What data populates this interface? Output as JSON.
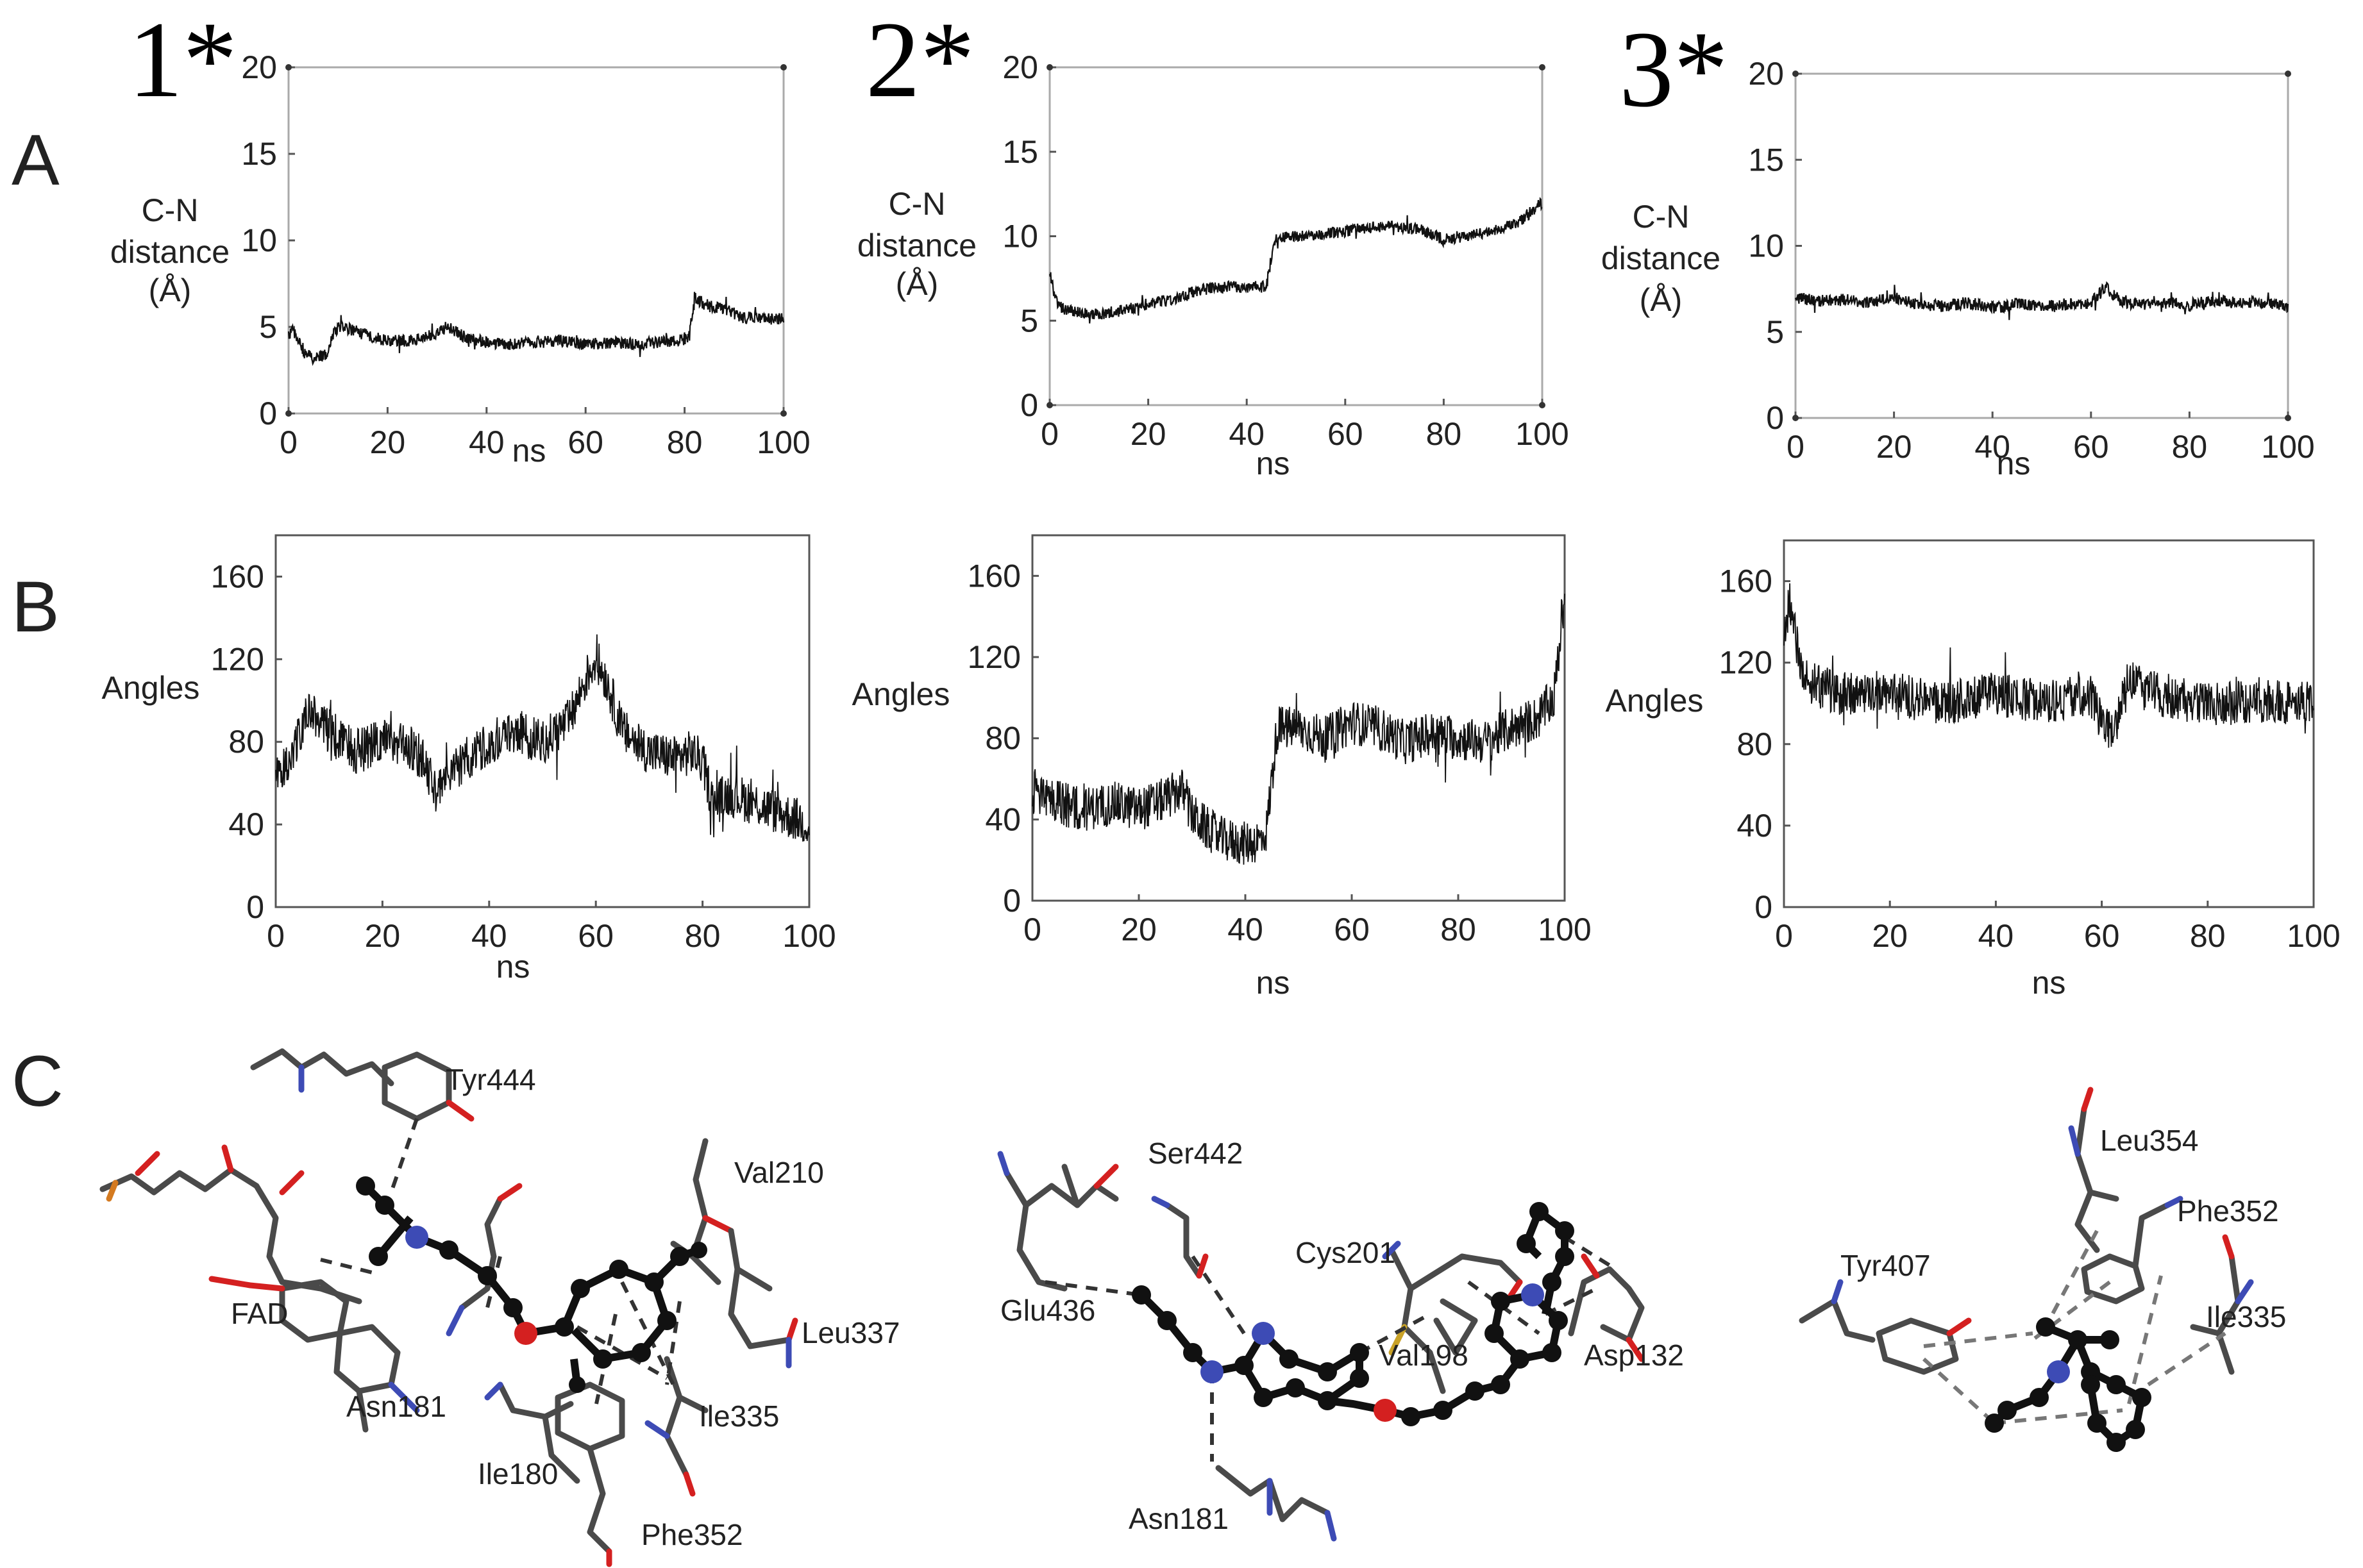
{
  "panel_letters": [
    "A",
    "B",
    "C"
  ],
  "compound_labels": [
    "1*",
    "2*",
    "3*"
  ],
  "chart_data": [
    {
      "id": "A1",
      "type": "line",
      "xlabel": "ns",
      "ylabel": [
        "C-N",
        "distance",
        "(Å)"
      ],
      "xlim": [
        0,
        100
      ],
      "ylim": [
        0,
        20
      ],
      "xticks": [
        0,
        20,
        40,
        60,
        80,
        100
      ],
      "yticks": [
        0,
        5,
        10,
        15,
        20
      ],
      "grid": false,
      "series": [
        {
          "x": [
            0,
            1,
            2,
            3,
            5,
            7,
            8,
            9,
            10,
            12,
            15,
            20,
            25,
            30,
            32,
            35,
            40,
            45,
            50,
            55,
            60,
            65,
            70,
            75,
            80,
            81,
            82,
            83,
            85,
            88,
            90,
            92,
            95,
            98,
            100
          ],
          "y": [
            4.5,
            4.8,
            4.2,
            3.5,
            3.2,
            3.3,
            3.5,
            4.6,
            5.0,
            4.9,
            4.6,
            4.2,
            4.2,
            4.6,
            5.0,
            4.5,
            4.1,
            4.0,
            4.1,
            4.2,
            4.0,
            4.1,
            4.0,
            4.1,
            4.3,
            4.5,
            6.8,
            6.5,
            6.2,
            6.0,
            5.8,
            5.5,
            5.6,
            5.4,
            5.5
          ]
        }
      ]
    },
    {
      "id": "A2",
      "type": "line",
      "xlabel": "ns",
      "ylabel": [
        "C-N",
        "distance",
        "(Å)"
      ],
      "xlim": [
        0,
        100
      ],
      "ylim": [
        0,
        20
      ],
      "xticks": [
        0,
        20,
        40,
        60,
        80,
        100
      ],
      "yticks": [
        0,
        5,
        10,
        15,
        20
      ],
      "grid": false,
      "series": [
        {
          "x": [
            0,
            1,
            2,
            5,
            10,
            15,
            20,
            25,
            30,
            35,
            40,
            44,
            45,
            46,
            50,
            55,
            60,
            65,
            70,
            75,
            80,
            85,
            90,
            95,
            98,
            100
          ],
          "y": [
            8.0,
            6.5,
            5.8,
            5.5,
            5.4,
            5.6,
            6.0,
            6.3,
            6.8,
            7.0,
            7.0,
            7.0,
            8.8,
            10.0,
            10.0,
            10.1,
            10.3,
            10.5,
            10.6,
            10.4,
            9.8,
            10.0,
            10.3,
            10.8,
            11.5,
            12.0
          ]
        }
      ]
    },
    {
      "id": "A3",
      "type": "line",
      "xlabel": "ns",
      "ylabel": [
        "C-N",
        "distance",
        "(Å)"
      ],
      "xlim": [
        0,
        100
      ],
      "ylim": [
        0,
        20
      ],
      "xticks": [
        0,
        20,
        40,
        60,
        80,
        100
      ],
      "yticks": [
        0,
        5,
        10,
        15,
        20
      ],
      "grid": false,
      "series": [
        {
          "x": [
            0,
            5,
            10,
            15,
            20,
            25,
            30,
            35,
            40,
            45,
            50,
            55,
            60,
            63,
            65,
            67,
            70,
            75,
            80,
            85,
            90,
            95,
            100
          ],
          "y": [
            7.0,
            6.8,
            6.9,
            6.7,
            7.0,
            6.6,
            6.5,
            6.7,
            6.4,
            6.6,
            6.5,
            6.6,
            6.7,
            7.6,
            7.0,
            6.7,
            6.6,
            6.7,
            6.6,
            6.8,
            6.7,
            6.7,
            6.5
          ]
        }
      ]
    },
    {
      "id": "B1",
      "type": "line",
      "xlabel": "ns",
      "ylabel": [
        "Angles"
      ],
      "xlim": [
        0,
        100
      ],
      "ylim": [
        0,
        180
      ],
      "xticks": [
        0,
        20,
        40,
        60,
        80,
        100
      ],
      "yticks": [
        0,
        40,
        80,
        120,
        160
      ],
      "grid": false,
      "series": [
        {
          "x": [
            0,
            3,
            6,
            10,
            15,
            20,
            25,
            28,
            30,
            35,
            40,
            45,
            50,
            55,
            58,
            60,
            62,
            65,
            70,
            75,
            78,
            80,
            82,
            85,
            90,
            95,
            100
          ],
          "y": [
            60,
            75,
            95,
            85,
            75,
            80,
            78,
            70,
            55,
            70,
            80,
            85,
            80,
            90,
            110,
            120,
            110,
            85,
            75,
            72,
            75,
            70,
            50,
            55,
            50,
            45,
            40
          ]
        }
      ]
    },
    {
      "id": "B2",
      "type": "line",
      "xlabel": "ns",
      "ylabel": [
        "Angles"
      ],
      "xlim": [
        0,
        100
      ],
      "ylim": [
        0,
        180
      ],
      "xticks": [
        0,
        20,
        40,
        60,
        80,
        100
      ],
      "yticks": [
        0,
        40,
        80,
        120,
        160
      ],
      "grid": false,
      "series": [
        {
          "x": [
            0,
            5,
            10,
            15,
            20,
            25,
            28,
            30,
            33,
            36,
            40,
            43,
            44,
            46,
            50,
            55,
            60,
            65,
            70,
            75,
            80,
            85,
            90,
            95,
            98,
            100
          ],
          "y": [
            55,
            48,
            45,
            48,
            45,
            50,
            55,
            42,
            35,
            30,
            28,
            30,
            35,
            85,
            85,
            80,
            88,
            85,
            78,
            82,
            80,
            78,
            85,
            90,
            100,
            150
          ]
        }
      ]
    },
    {
      "id": "B3",
      "type": "line",
      "xlabel": "ns",
      "ylabel": [
        "Angles"
      ],
      "xlim": [
        0,
        100
      ],
      "ylim": [
        0,
        180
      ],
      "xticks": [
        0,
        20,
        40,
        60,
        80,
        100
      ],
      "yticks": [
        0,
        40,
        80,
        120,
        160
      ],
      "grid": false,
      "series": [
        {
          "x": [
            0,
            1,
            3,
            5,
            10,
            20,
            30,
            40,
            50,
            58,
            60,
            62,
            65,
            70,
            80,
            85,
            90,
            95,
            100
          ],
          "y": [
            130,
            150,
            120,
            110,
            105,
            105,
            100,
            105,
            100,
            105,
            90,
            85,
            110,
            105,
            100,
            100,
            102,
            100,
            100
          ]
        }
      ]
    }
  ],
  "panel_C": {
    "complex_1": {
      "labels": [
        "Tyr444",
        "Val210",
        "FAD",
        "Leu337",
        "Asn181",
        "Ile335",
        "Ile180",
        "Phe352"
      ]
    },
    "complex_2": {
      "labels": [
        "Ser442",
        "Cys201",
        "Glu436",
        "Val198",
        "Asp132",
        "Asn181"
      ]
    },
    "complex_3": {
      "labels": [
        "Leu354",
        "Phe352",
        "Tyr407",
        "Ile335"
      ]
    },
    "colors": {
      "carbon": "#111111",
      "stick": "#4a4a4a",
      "nitrogen": "#3d4bb5",
      "oxygen": "#d42020",
      "sulfur": "#c9a227",
      "phosphorus": "#d47a20",
      "hbond": "#333333",
      "pi": "#777777"
    }
  }
}
